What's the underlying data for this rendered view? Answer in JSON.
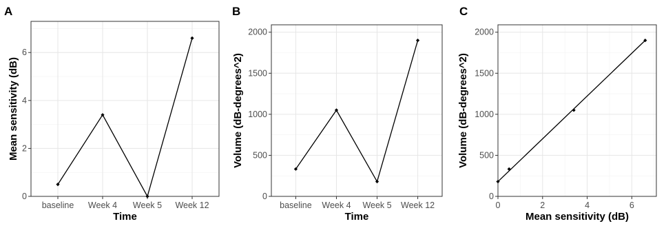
{
  "chart_data": [
    {
      "panel": "A",
      "type": "line",
      "categories": [
        "baseline",
        "Week 4",
        "Week 5",
        "Week 12"
      ],
      "values": [
        0.5,
        3.4,
        0.0,
        6.6
      ],
      "xlabel": "Time",
      "ylabel": "Mean sensitivity (dB)",
      "ylim": [
        0,
        7.3
      ],
      "yticks": [
        0,
        2,
        4,
        6
      ],
      "grid": true
    },
    {
      "panel": "B",
      "type": "line",
      "categories": [
        "baseline",
        "Week 4",
        "Week 5",
        "Week 12"
      ],
      "values": [
        333,
        1050,
        180,
        1900
      ],
      "xlabel": "Time",
      "ylabel": "Volume (dB-degrees^2)",
      "ylim": [
        0,
        2090
      ],
      "yticks": [
        0,
        500,
        1000,
        1500,
        2000
      ],
      "grid": true
    },
    {
      "panel": "C",
      "type": "scatter",
      "x": [
        0.0,
        0.5,
        3.4,
        6.6
      ],
      "y": [
        180,
        333,
        1050,
        1900
      ],
      "fit_line": [
        [
          0.0,
          180
        ],
        [
          6.6,
          1900
        ]
      ],
      "xlabel": "Mean sensitivity (dB)",
      "ylabel": "Volume (dB-degrees^2)",
      "xlim": [
        0,
        7.1
      ],
      "ylim": [
        0,
        2090
      ],
      "xticks": [
        0,
        2,
        4,
        6
      ],
      "yticks": [
        0,
        500,
        1000,
        1500,
        2000
      ],
      "grid": true
    }
  ]
}
